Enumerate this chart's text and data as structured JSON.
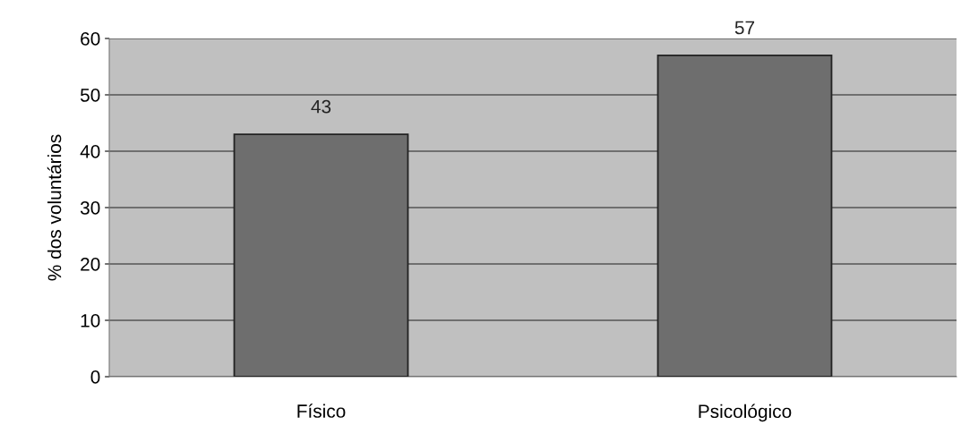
{
  "chart_data": {
    "type": "bar",
    "ylabel": "% dos voluntários",
    "categories": [
      "Físico",
      "Psicológico"
    ],
    "values": [
      43,
      57
    ],
    "color": "#6e6e6e",
    "ylim": [
      0,
      60
    ],
    "yticks": [
      0,
      10,
      20,
      30,
      40,
      50,
      60
    ],
    "grid": "y",
    "data_labels": true
  }
}
